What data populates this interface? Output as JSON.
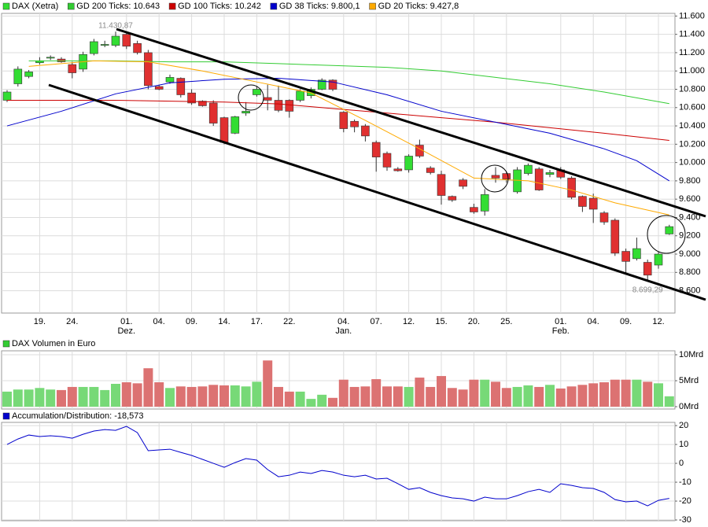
{
  "chart_data": [
    {
      "type": "candlestick",
      "categories": [
        null,
        null,
        null,
        "19.",
        null,
        null,
        "24.",
        null,
        null,
        null,
        null,
        "01.",
        null,
        null,
        "04.",
        null,
        null,
        "09.",
        null,
        null,
        "14.",
        null,
        null,
        "17.",
        null,
        null,
        "22.",
        null,
        null,
        null,
        null,
        "04.",
        null,
        null,
        "07.",
        null,
        null,
        "12.",
        null,
        null,
        "15.",
        null,
        null,
        "20.",
        null,
        null,
        "25.",
        null,
        null,
        null,
        null,
        "01.",
        null,
        null,
        "04.",
        null,
        null,
        "09.",
        null,
        null,
        "12.",
        null
      ],
      "category_sublabels": [
        null,
        null,
        null,
        null,
        null,
        null,
        null,
        null,
        null,
        null,
        null,
        "Dez.",
        null,
        null,
        null,
        null,
        null,
        null,
        null,
        null,
        null,
        null,
        null,
        null,
        null,
        null,
        null,
        null,
        null,
        null,
        null,
        "Jan.",
        null,
        null,
        null,
        null,
        null,
        null,
        null,
        null,
        null,
        null,
        null,
        null,
        null,
        null,
        null,
        null,
        null,
        null,
        null,
        "Feb.",
        null,
        null,
        null,
        null,
        null,
        null,
        null,
        null,
        null,
        null
      ],
      "candles": {
        "name": "DAX (Xetra)",
        "up_color": "#33dd33",
        "down_color": "#e03030",
        "open": [
          10680,
          10860,
          10940,
          11090,
          11140,
          11130,
          11070,
          11020,
          11190,
          11280,
          11280,
          11400,
          11300,
          11200,
          10830,
          10880,
          10920,
          10760,
          10670,
          10650,
          10490,
          10320,
          10540,
          10740,
          10710,
          10680,
          10680,
          10680,
          10730,
          10800,
          10900,
          10550,
          10450,
          10400,
          10220,
          10100,
          9930,
          9920,
          10190,
          9940,
          9870,
          9630,
          9810,
          9510,
          9470,
          9860,
          9880,
          9680,
          9880,
          9930,
          9870,
          9920,
          9830,
          9630,
          9610,
          9450,
          9370,
          9030,
          8950,
          8910,
          8880,
          9220
        ],
        "high": [
          10790,
          11050,
          11010,
          11150,
          11170,
          11150,
          11100,
          11210,
          11350,
          11330,
          11430.87,
          11420,
          11330,
          11230,
          10850,
          10960,
          10930,
          10800,
          10680,
          10680,
          10500,
          10510,
          10660,
          10830,
          10850,
          10840,
          10690,
          10800,
          10820,
          10920,
          10910,
          10560,
          10470,
          10420,
          10240,
          10120,
          9950,
          10090,
          10250,
          9960,
          9910,
          9640,
          9830,
          9550,
          9710,
          9950,
          9900,
          9950,
          9990,
          9950,
          9920,
          9950,
          9850,
          9640,
          9660,
          9470,
          9390,
          9060,
          9180,
          8940,
          9030,
          9320
        ],
        "low": [
          10660,
          10830,
          10920,
          11070,
          11120,
          11090,
          10920,
          10990,
          11170,
          11260,
          11260,
          11240,
          11180,
          10800,
          10790,
          10860,
          10710,
          10630,
          10610,
          10400,
          10200,
          10310,
          10510,
          10720,
          10570,
          10550,
          10490,
          10660,
          10700,
          10790,
          10780,
          10330,
          10330,
          10230,
          9900,
          9910,
          9900,
          9890,
          10050,
          9870,
          9540,
          9570,
          9710,
          9440,
          9420,
          9780,
          9780,
          9660,
          9860,
          9690,
          9840,
          9820,
          9600,
          9460,
          9340,
          9320,
          8980,
          8790,
          8930,
          8699.29,
          8840,
          9210
        ],
        "close": [
          10770,
          11020,
          10990,
          11110,
          11150,
          11100,
          10980,
          11180,
          11320,
          11290,
          11380,
          11270,
          11200,
          10840,
          10800,
          10930,
          10740,
          10650,
          10620,
          10430,
          10220,
          10500,
          10560,
          10800,
          10680,
          10570,
          10560,
          10780,
          10800,
          10900,
          10800,
          10370,
          10390,
          10290,
          10060,
          9950,
          9910,
          10070,
          10070,
          9890,
          9640,
          9590,
          9740,
          9460,
          9650,
          9830,
          9820,
          9920,
          9970,
          9700,
          9890,
          9840,
          9620,
          9520,
          9490,
          9350,
          9010,
          8920,
          9060,
          8770,
          9000,
          9300
        ]
      },
      "series": [
        {
          "name": "GD 200 Ticks: 10.643",
          "color": "#33cc33",
          "x": [
            2,
            10,
            15,
            20,
            25,
            30,
            35,
            40,
            45,
            50,
            55,
            61
          ],
          "values": [
            11110,
            11110,
            11100,
            11100,
            11080,
            11060,
            11040,
            11000,
            10930,
            10860,
            10770,
            10643
          ]
        },
        {
          "name": "GD 100 Ticks: 10.242",
          "color": "#cc0000",
          "x": [
            0,
            10,
            20,
            25,
            30,
            35,
            40,
            45,
            50,
            55,
            61
          ],
          "values": [
            10680,
            10680,
            10660,
            10640,
            10590,
            10540,
            10490,
            10440,
            10380,
            10320,
            10242
          ]
        },
        {
          "name": "GD 38 Ticks: 9.800,1",
          "color": "#0000cc",
          "x": [
            0,
            5,
            10,
            15,
            20,
            25,
            30,
            35,
            40,
            45,
            50,
            55,
            58,
            61
          ],
          "values": [
            10400,
            10560,
            10750,
            10870,
            10910,
            10920,
            10880,
            10740,
            10560,
            10440,
            10320,
            10150,
            10020,
            9800.1
          ]
        },
        {
          "name": "GD 20 Ticks: 9.427,8",
          "color": "#ffaa00",
          "x": [
            2,
            8,
            13,
            18,
            23,
            28,
            33,
            38,
            43,
            48,
            52,
            56,
            61
          ],
          "values": [
            11050,
            11110,
            11100,
            11000,
            10880,
            10760,
            10460,
            10150,
            9830,
            9800,
            9700,
            9560,
            9427.8
          ]
        }
      ],
      "annotations": [
        {
          "text": "11.430,87",
          "index": 10,
          "at": "high"
        },
        {
          "text": "8.699,29",
          "index": 59,
          "at": "low"
        }
      ],
      "ylim": [
        8356,
        11629
      ],
      "yticks": [
        {
          "value": 8600,
          "label": "8.600"
        },
        {
          "value": 8800,
          "label": "8.800"
        },
        {
          "value": 9000,
          "label": "9.000"
        },
        {
          "value": 9200,
          "label": "9.200"
        },
        {
          "value": 9400,
          "label": "9.400"
        },
        {
          "value": 9600,
          "label": "9.600"
        },
        {
          "value": 9800,
          "label": "9.800"
        },
        {
          "value": 10000,
          "label": "10.000"
        },
        {
          "value": 10200,
          "label": "10.200"
        },
        {
          "value": 10400,
          "label": "10.400"
        },
        {
          "value": 10600,
          "label": "10.600"
        },
        {
          "value": 10800,
          "label": "10.800"
        },
        {
          "value": 11000,
          "label": "11.000"
        },
        {
          "value": 11200,
          "label": "11.200"
        },
        {
          "value": 11400,
          "label": "11.400"
        },
        {
          "value": 11600,
          "label": "11.600"
        }
      ],
      "grid": true
    },
    {
      "type": "bar",
      "series": [
        {
          "name": "DAX Volumen in Euro",
          "color": "#33cc33",
          "up_color": "#77d977",
          "down_color": "#dc7272",
          "values": [
            2.9,
            3.3,
            3.3,
            3.6,
            3.3,
            3.2,
            3.8,
            3.8,
            3.8,
            3.2,
            4.4,
            4.7,
            4.5,
            7.4,
            4.7,
            3.6,
            3.9,
            3.8,
            3.9,
            4.2,
            4.1,
            4.1,
            3.9,
            4.8,
            8.9,
            3.8,
            2.9,
            2.9,
            1.5,
            2.3,
            1.7,
            5.2,
            3.8,
            3.9,
            5.3,
            3.9,
            3.9,
            3.8,
            5.6,
            3.8,
            5.9,
            3.6,
            3.3,
            5.2,
            5.2,
            4.8,
            3.6,
            3.8,
            4.1,
            3.8,
            4.2,
            3.5,
            3.9,
            4.2,
            4.5,
            4.7,
            5.2,
            5.2,
            5.2,
            4.8,
            4.5,
            2.0
          ]
        }
      ],
      "ylim": [
        -0.45,
        10.76
      ],
      "yticks": [
        {
          "value": 0,
          "label": "0Mrd"
        },
        {
          "value": 5,
          "label": "5Mrd"
        },
        {
          "value": 10,
          "label": "10Mrd"
        }
      ],
      "grid": true
    },
    {
      "type": "line",
      "series": [
        {
          "name": "Accumulation/Distribution: -18,573",
          "color": "#0000cc",
          "values": [
            10.0,
            12.9,
            15.0,
            14.2,
            14.6,
            14.2,
            13.3,
            15.4,
            17.1,
            17.9,
            17.5,
            19.6,
            16.3,
            6.7,
            7.1,
            7.5,
            5.8,
            4.2,
            2.1,
            0.0,
            -2.1,
            0.4,
            2.5,
            1.7,
            -3.3,
            -7.1,
            -6.3,
            -4.6,
            -5.4,
            -3.8,
            -4.6,
            -6.3,
            -7.1,
            -6.3,
            -8.3,
            -7.9,
            -10.8,
            -13.8,
            -12.9,
            -15.4,
            -17.1,
            -18.3,
            -18.8,
            -20.0,
            -17.9,
            -18.8,
            -18.8,
            -17.1,
            -15.0,
            -13.8,
            -15.4,
            -10.8,
            -11.7,
            -12.9,
            -13.3,
            -15.4,
            -19.2,
            -20.4,
            -20.0,
            -22.5,
            -19.6,
            -18.573
          ]
        }
      ],
      "ylim": [
        -30.4,
        21.7
      ],
      "yticks": [
        -30,
        -20,
        -10,
        0,
        10,
        20
      ],
      "grid": true
    }
  ]
}
